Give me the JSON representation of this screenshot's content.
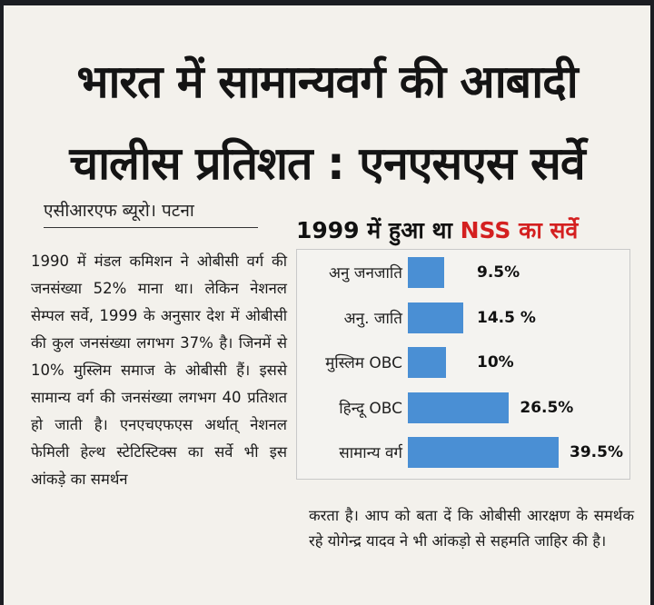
{
  "headline": {
    "line1": "भारत में सामान्यवर्ग की आबादी",
    "line2": "चालीस प्रतिशत : एनएसएस सर्वे"
  },
  "byline": "एसीआरएफ ब्यूरो। पटना",
  "body_left": "1990 में मंडल कमिशन ने ओबीसी वर्ग की जनसंख्या 52% माना था। लेकिन नेशनल सेम्पल सर्वे, 1999 के अनुसार देश में ओबीसी की कुल जनसंख्या लगभग 37% है। जिनमें से 10% मुस्लिम समाज के ओबीसी हैं। इससे सामान्य वर्ग की जनसंख्या लगभग 40 प्रतिशत हो जाती है। एनएचएफएस अर्थात् नेशनल फेमिली हेल्थ स्टेटिस्टिक्स का सर्वे भी इस आंकड़े का समर्थन",
  "body_right": "करता है। आप को बता दें कि ओबीसी आरक्षण के समर्थक रहे योगेन्द्र यादव ने भी आंकड़ो से सहमति जाहिर की है।",
  "chart_title": {
    "part1": "1999 में हुआ था ",
    "part2": "NSS का सर्वे"
  },
  "chart_data": {
    "type": "bar",
    "orientation": "horizontal",
    "categories": [
      "अनु जनजाति",
      "अनु. जाति",
      "मुस्लिम OBC",
      "हिन्दू OBC",
      "सामान्य वर्ग"
    ],
    "values": [
      9.5,
      14.5,
      10,
      26.5,
      39.5
    ],
    "value_labels": [
      "9.5%",
      "14.5 %",
      "10%",
      "26.5%",
      "39.5%"
    ],
    "title": "1999 में हुआ था NSS का सर्वे",
    "xlabel": "",
    "ylabel": "",
    "xlim": [
      0,
      39.5
    ],
    "grid": false,
    "bar_color": "#4a8fd4"
  },
  "colors": {
    "accent_red": "#d42020",
    "bar_blue": "#4a8fd4"
  }
}
